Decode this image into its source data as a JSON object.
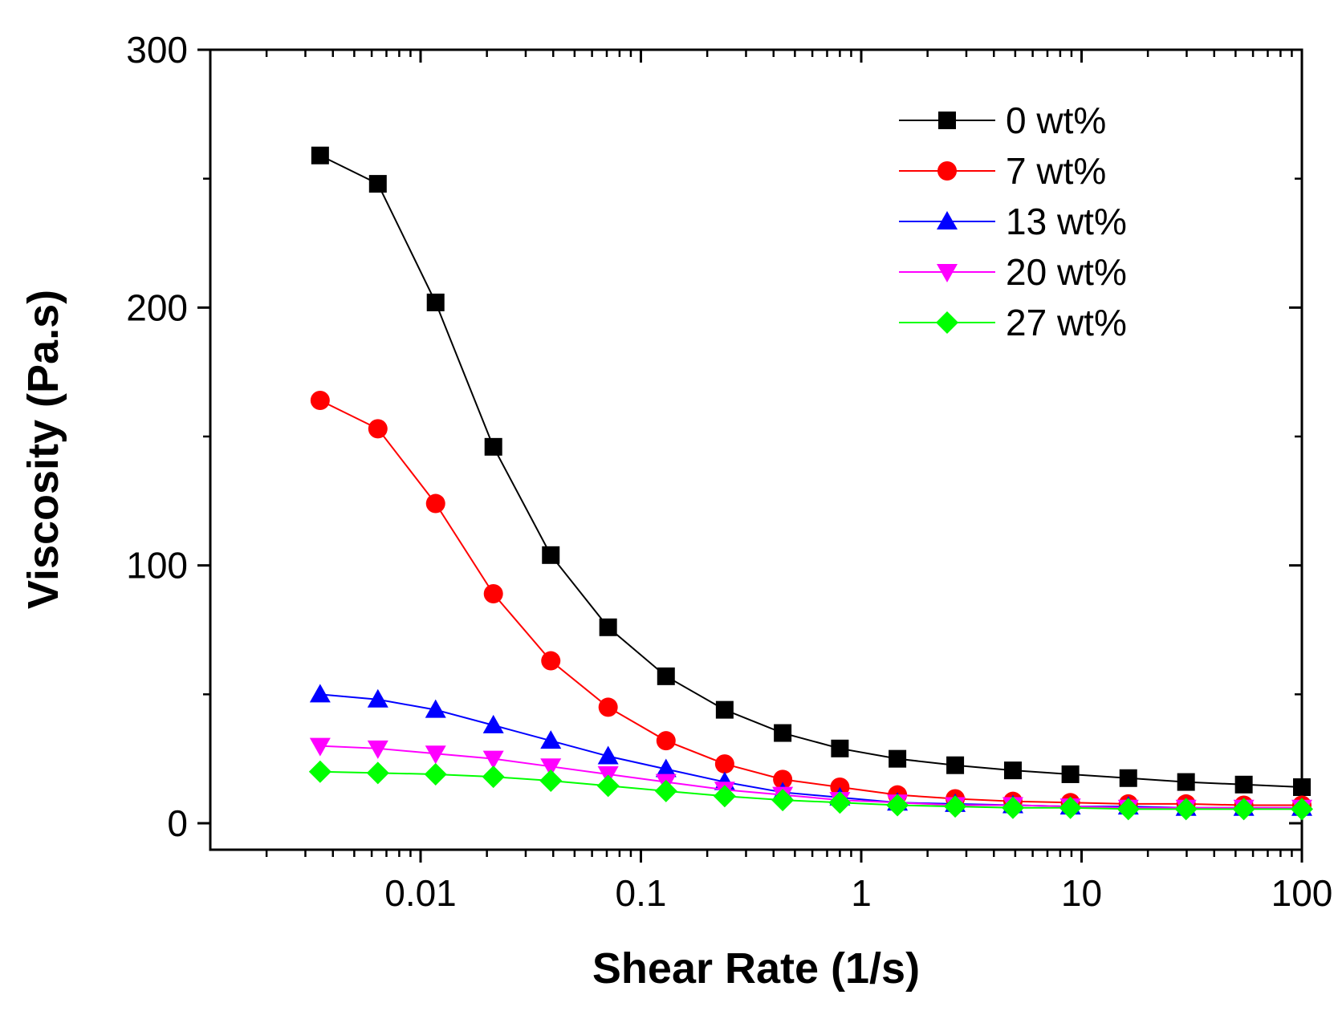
{
  "chart_data": {
    "type": "line",
    "xscale": "log",
    "title": "",
    "xlabel": "Shear Rate (1/s)",
    "ylabel": "Viscosity (Pa.s)",
    "xlim": [
      0.001,
      100
    ],
    "ylim": [
      -10,
      300
    ],
    "x_tick_labels": [
      "0.01",
      "0.1",
      "1",
      "10",
      "100"
    ],
    "y_tick_labels": [
      "0",
      "100",
      "200",
      "300"
    ],
    "legend_position": "top-right",
    "x": [
      0.0035,
      0.0064,
      0.0117,
      0.0214,
      0.039,
      0.071,
      0.13,
      0.24,
      0.44,
      0.8,
      1.46,
      2.67,
      4.88,
      8.9,
      16.3,
      29.8,
      54.5,
      100
    ],
    "series": [
      {
        "name": "0 wt%",
        "color": "#000000",
        "marker": "square",
        "values": [
          259,
          248,
          202,
          146,
          104,
          76,
          57,
          44,
          35,
          29,
          25,
          22.5,
          20.5,
          19,
          17.5,
          16,
          15,
          14
        ]
      },
      {
        "name": "7 wt%",
        "color": "#ff0000",
        "marker": "circle",
        "values": [
          164,
          153,
          124,
          89,
          63,
          45,
          32,
          23,
          17,
          14,
          11,
          9.5,
          8.5,
          8,
          7.5,
          7.5,
          7,
          7
        ]
      },
      {
        "name": "13 wt%",
        "color": "#0000ff",
        "marker": "triangle-up",
        "values": [
          50,
          48,
          44,
          38,
          32,
          26,
          21,
          16,
          12,
          10,
          8,
          7.5,
          7,
          6.5,
          6.5,
          6,
          6,
          6
        ]
      },
      {
        "name": "20 wt%",
        "color": "#ff00ff",
        "marker": "triangle-down",
        "values": [
          30,
          29,
          27,
          25,
          22,
          19,
          16,
          13,
          11,
          9,
          8,
          7,
          7,
          6.5,
          6,
          6,
          6,
          6
        ]
      },
      {
        "name": "27 wt%",
        "color": "#00ff00",
        "marker": "diamond",
        "values": [
          20,
          19.5,
          19,
          18,
          16.5,
          14.5,
          12.5,
          10.5,
          9,
          8,
          7,
          6.5,
          6,
          6,
          5.5,
          5.5,
          5.5,
          5.5
        ]
      }
    ]
  }
}
